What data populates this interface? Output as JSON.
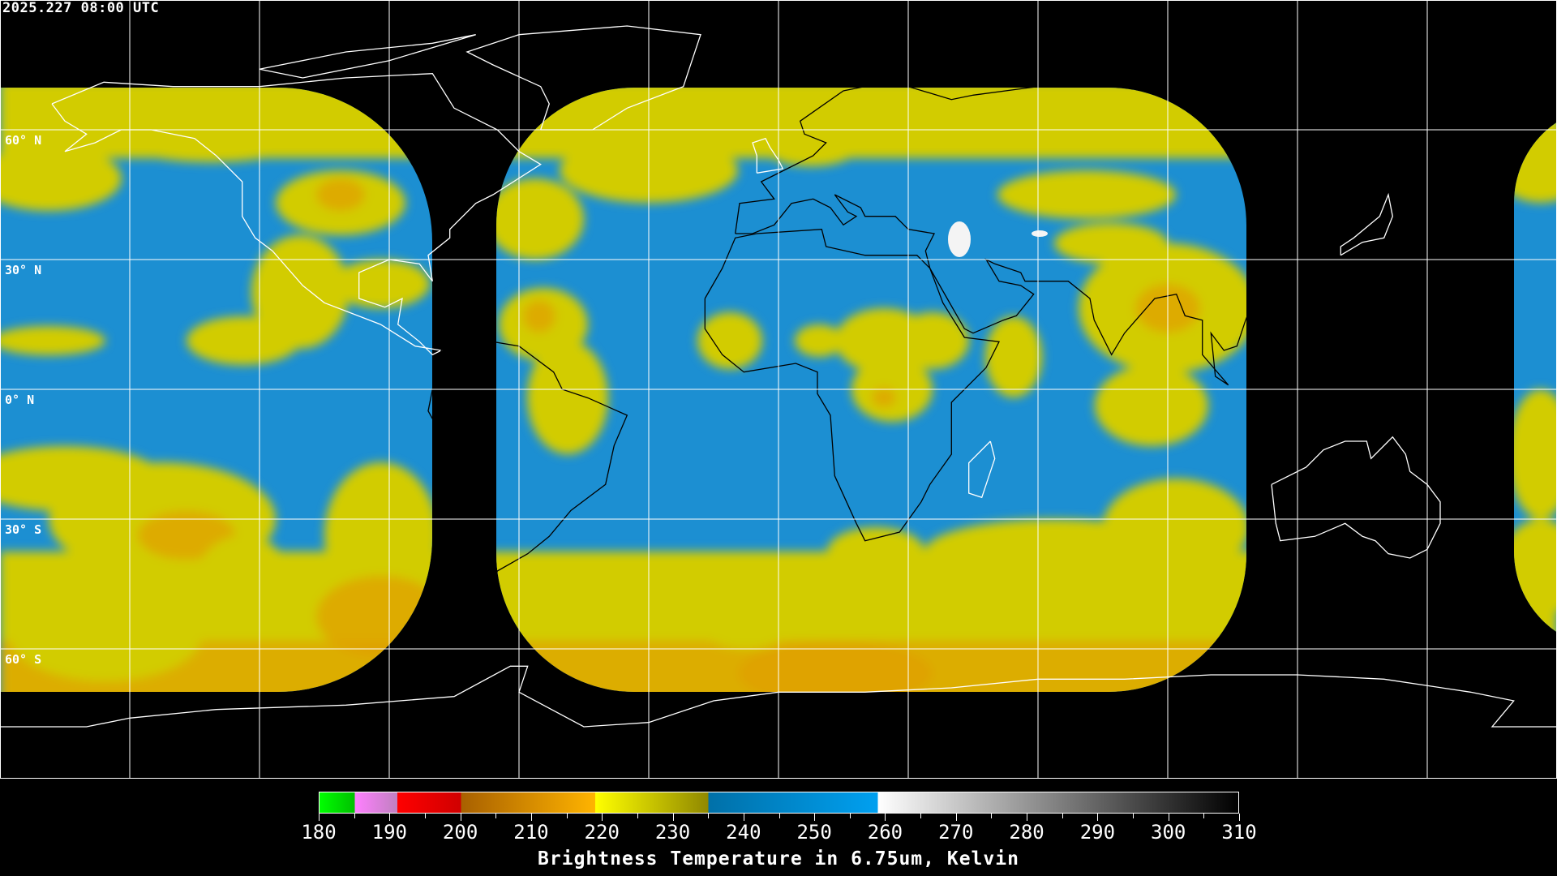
{
  "title": "2025.227 08:00 UTC",
  "lat_labels": [
    "60° N",
    "30° N",
    "0° N",
    "30° S",
    "60° S"
  ],
  "colorbar": {
    "label": "Brightness Temperature in 6.75um, Kelvin",
    "min": 180,
    "max": 310,
    "tick_labels": [
      "180",
      "190",
      "200",
      "210",
      "220",
      "230",
      "240",
      "250",
      "260",
      "270",
      "280",
      "290",
      "300",
      "310"
    ],
    "segments": [
      {
        "from": 180,
        "to": 185,
        "colors": [
          "#00ff00",
          "#00c000"
        ]
      },
      {
        "from": 185,
        "to": 191,
        "colors": [
          "#ff80ff",
          "#c080c0"
        ]
      },
      {
        "from": 191,
        "to": 200,
        "colors": [
          "#ff0000",
          "#d00000"
        ]
      },
      {
        "from": 200,
        "to": 219,
        "colors": [
          "#a86000",
          "#ffb400"
        ]
      },
      {
        "from": 219,
        "to": 235,
        "colors": [
          "#ffff00",
          "#908800"
        ]
      },
      {
        "from": 235,
        "to": 259,
        "colors": [
          "#0070a8",
          "#00a0f0"
        ]
      },
      {
        "from": 259,
        "to": 310,
        "colors": [
          "#ffffff",
          "#000000"
        ]
      }
    ]
  },
  "colors": {
    "water_vapor_dry": "#1c8fd2",
    "water_vapor_moist": "#d2cc00",
    "cold_cloud": "#e0a000",
    "coastline": "#ffffff",
    "grid": "#ffffff"
  }
}
